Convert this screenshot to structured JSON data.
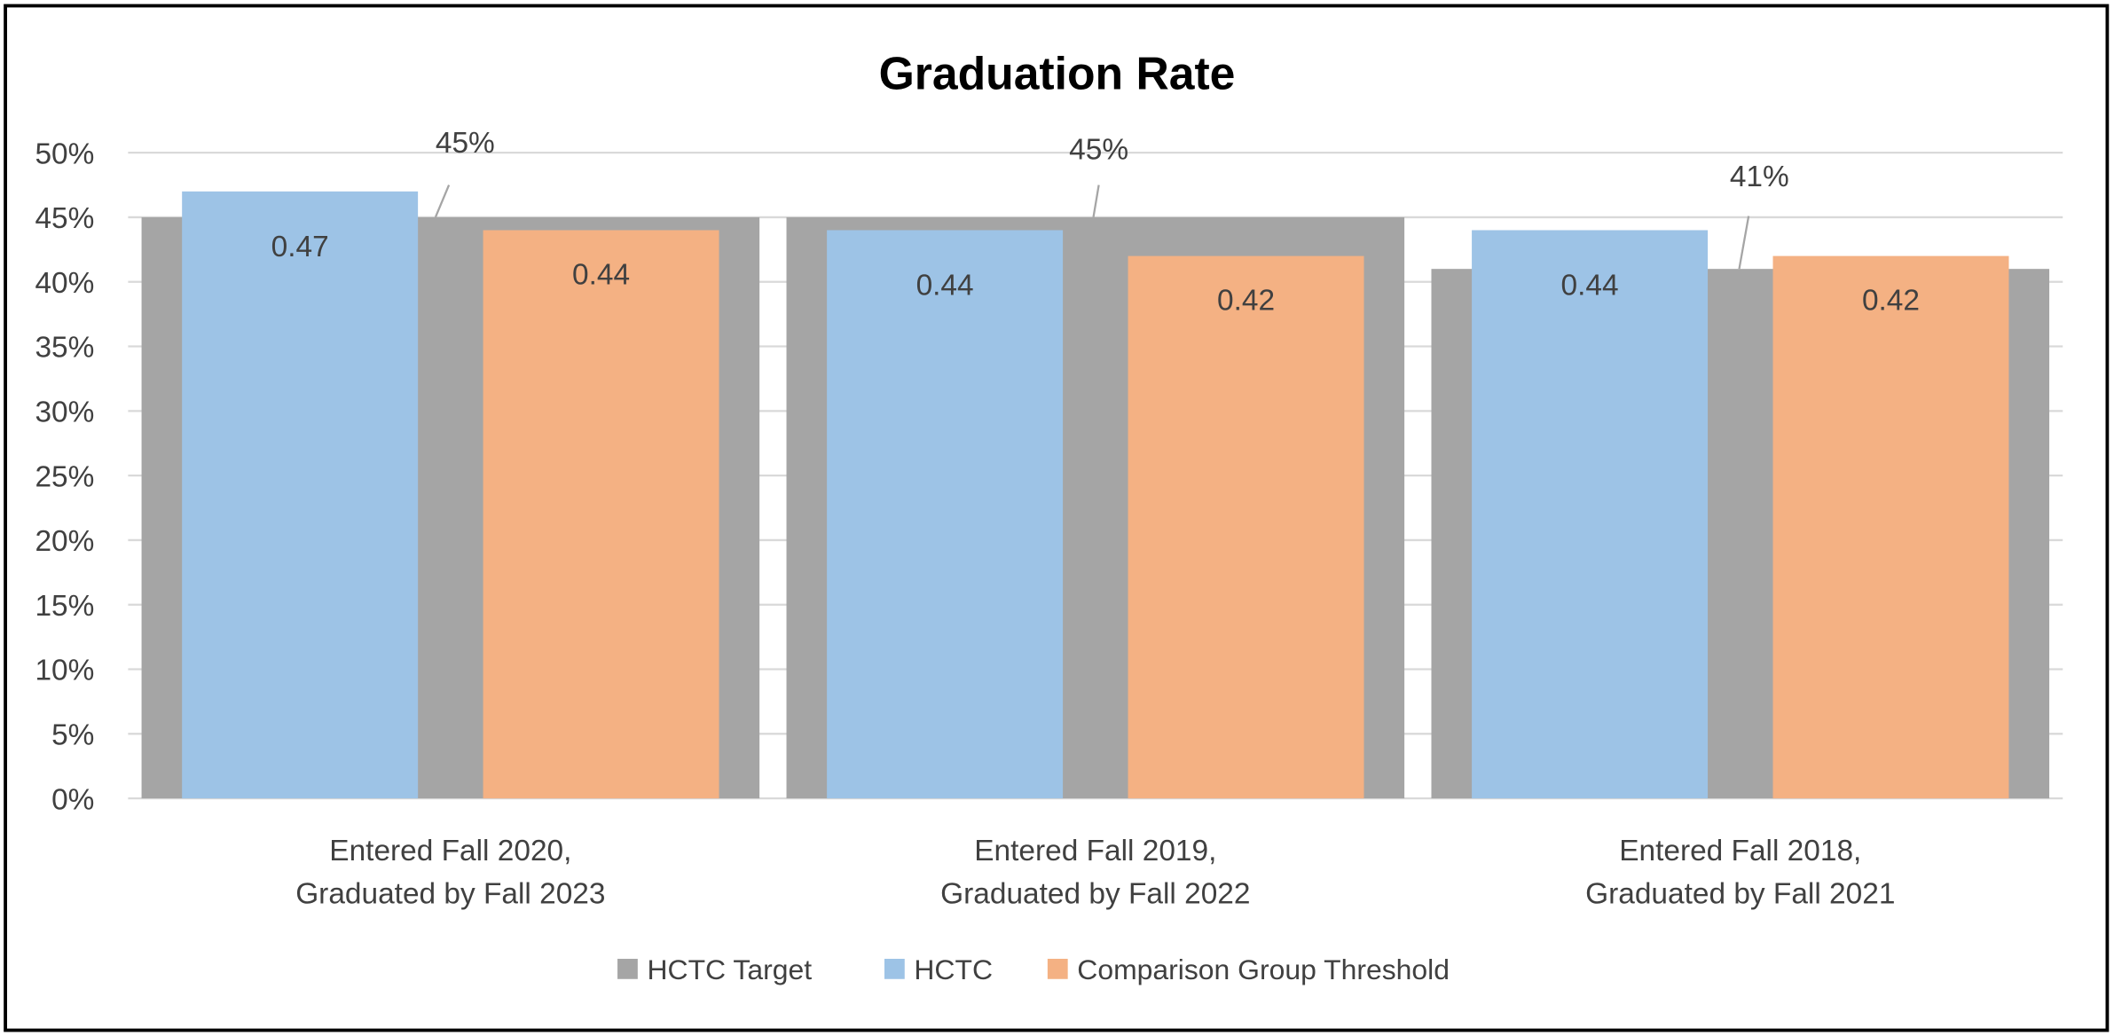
{
  "chart_data": {
    "type": "bar",
    "title": "Graduation Rate",
    "xlabel": "",
    "ylabel": "",
    "ylim": [
      0,
      0.5
    ],
    "y_ticks": [
      "0%",
      "5%",
      "10%",
      "15%",
      "20%",
      "25%",
      "30%",
      "35%",
      "40%",
      "45%",
      "50%"
    ],
    "grid": true,
    "legend_position": "bottom",
    "categories": [
      [
        "Entered Fall 2020,",
        "Graduated by Fall 2023"
      ],
      [
        "Entered Fall 2019,",
        "Graduated by Fall 2022"
      ],
      [
        "Entered Fall 2018,",
        "Graduated by Fall 2021"
      ]
    ],
    "series": [
      {
        "name": "HCTC Target",
        "color": "#A5A5A5",
        "values": [
          0.45,
          0.45,
          0.41
        ],
        "labels": [
          "45%",
          "45%",
          "41%"
        ],
        "style": "wide-background-bar"
      },
      {
        "name": "HCTC",
        "color": "#9DC3E6",
        "values": [
          0.47,
          0.44,
          0.44
        ],
        "labels": [
          "0.47",
          "0.44",
          "0.44"
        ]
      },
      {
        "name": "Comparison Group Threshold",
        "color": "#F4B183",
        "values": [
          0.44,
          0.42,
          0.42
        ],
        "labels": [
          "0.44",
          "0.42",
          "0.42"
        ]
      }
    ]
  }
}
